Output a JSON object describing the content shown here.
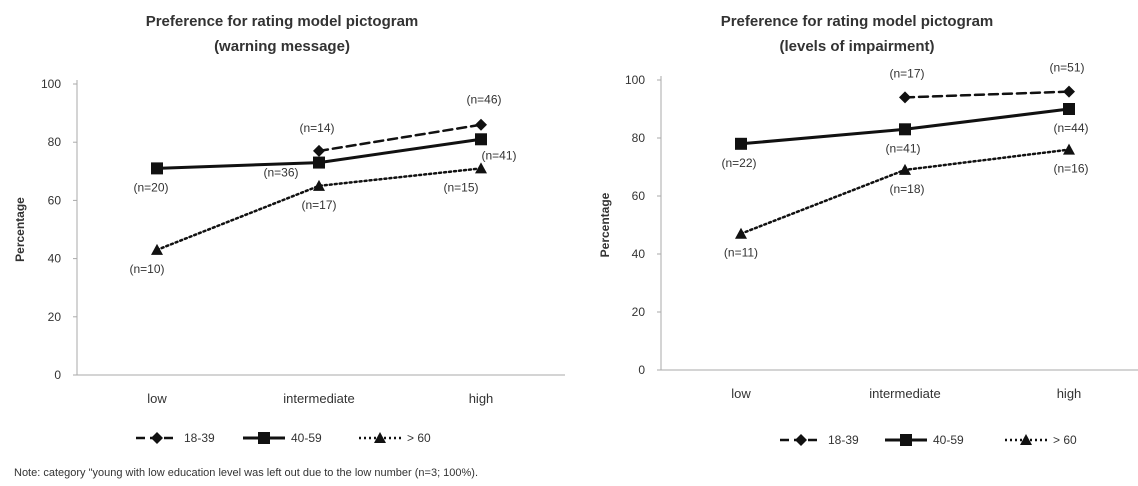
{
  "note": "Note: category \"young with low education level was left out due to the low number (n=3; 100%).",
  "chart_data": [
    {
      "type": "line",
      "title": [
        "Preference for rating model pictogram",
        "(warning message)"
      ],
      "xlabel": "",
      "ylabel": "Percentage",
      "ylim": [
        0,
        100
      ],
      "yticks": [
        "0",
        "20",
        "40",
        "60",
        "80",
        "100"
      ],
      "categories": [
        "low",
        "intermediate",
        "high"
      ],
      "grid": false,
      "legend_position": "bottom-left",
      "series": [
        {
          "name": "18-39",
          "style": "dashed",
          "marker": "diamond",
          "color": "#111111",
          "values": [
            null,
            77,
            86
          ],
          "labels": [
            null,
            "(n=14)",
            "(n=46)"
          ]
        },
        {
          "name": "40-59",
          "style": "solid",
          "marker": "square",
          "color": "#111111",
          "values": [
            71,
            73,
            81
          ],
          "labels": [
            "(n=20)",
            "(n=36)",
            "(n=41)"
          ]
        },
        {
          "name": "> 60",
          "style": "dotted",
          "marker": "triangle",
          "color": "#111111",
          "values": [
            43,
            65,
            71
          ],
          "labels": [
            "(n=10)",
            "(n=17)",
            "(n=15)"
          ]
        }
      ]
    },
    {
      "type": "line",
      "title": [
        "Preference for rating model pictogram",
        "(levels of impairment)"
      ],
      "xlabel": "",
      "ylabel": "Percentage",
      "ylim": [
        0,
        100
      ],
      "yticks": [
        "0",
        "20",
        "40",
        "60",
        "80",
        "100"
      ],
      "categories": [
        "low",
        "intermediate",
        "high"
      ],
      "grid": false,
      "legend_position": "bottom-right",
      "series": [
        {
          "name": "18-39",
          "style": "dashed",
          "marker": "diamond",
          "color": "#111111",
          "values": [
            null,
            94,
            96
          ],
          "labels": [
            null,
            "(n=17)",
            "(n=51)"
          ]
        },
        {
          "name": "40-59",
          "style": "solid",
          "marker": "square",
          "color": "#111111",
          "values": [
            78,
            83,
            90
          ],
          "labels": [
            "(n=22)",
            "(n=41)",
            "(n=44)"
          ]
        },
        {
          "name": "> 60",
          "style": "dotted",
          "marker": "triangle",
          "color": "#111111",
          "values": [
            47,
            69,
            76
          ],
          "labels": [
            "(n=11)",
            "(n=18)",
            "(n=16)"
          ]
        }
      ]
    }
  ]
}
